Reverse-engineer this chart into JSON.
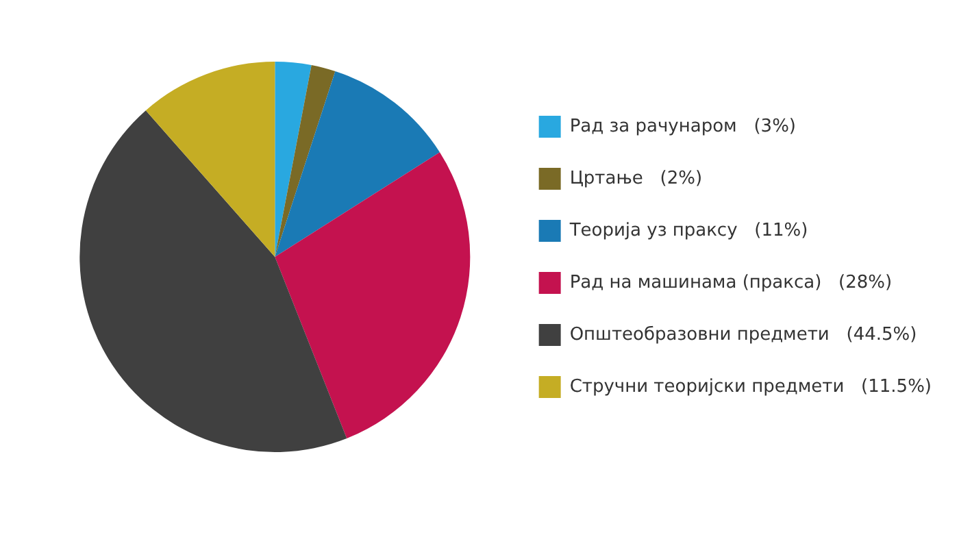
{
  "chart_data": {
    "type": "pie",
    "categories": [
      "Рад за рачунаром   (3%)",
      "Цртање   (2%)",
      "Теорија уз праксу   (11%)",
      "Рад на машинама (пракса)   (28%)",
      "Општеобразовни предмети   (44.5%)",
      "Стручни теоријски предмети   (11.5%)"
    ],
    "values": [
      3,
      2,
      11,
      28,
      44.5,
      11.5
    ],
    "colors": [
      "#29a8e0",
      "#7a6a26",
      "#1a7ab5",
      "#c4124f",
      "#404040",
      "#c5ad24"
    ],
    "legend": "right"
  }
}
